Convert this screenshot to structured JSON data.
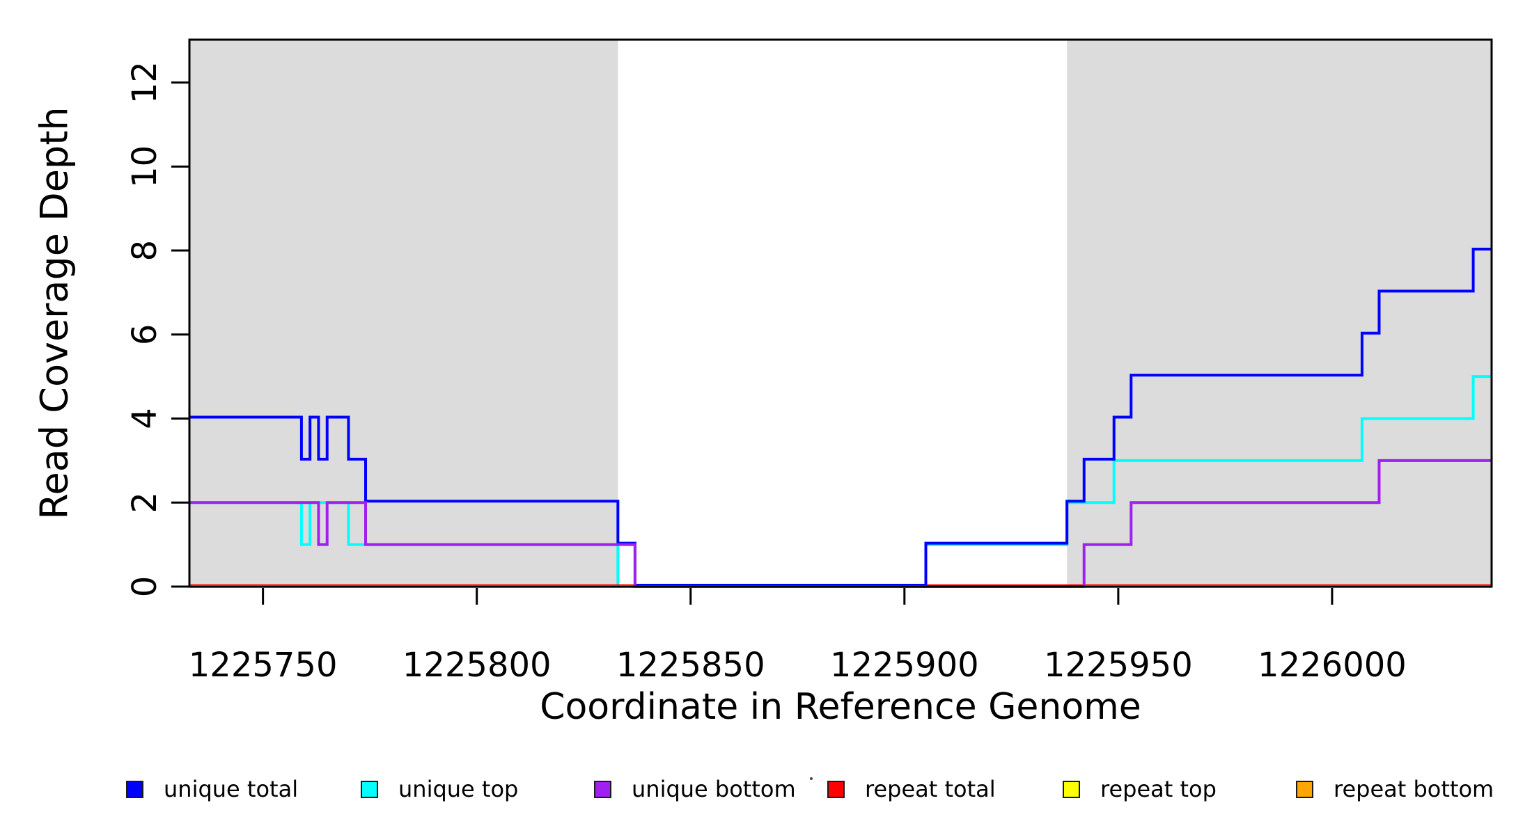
{
  "chart_data": {
    "type": "line",
    "subtype": "step",
    "title": "",
    "xlabel": "Coordinate in Reference Genome",
    "ylabel": "Read Coverage Depth",
    "xlim": [
      1225732.8,
      1226037.3
    ],
    "ylim": [
      0,
      13.02
    ],
    "grid": false,
    "x_ticks": [
      1225750,
      1225800,
      1225850,
      1225900,
      1225950,
      1226000
    ],
    "y_ticks": [
      0,
      2,
      4,
      6,
      8,
      10,
      12
    ],
    "shaded_regions": [
      {
        "name": "left-repeat-region",
        "x0": 1225732.8,
        "x1": 1225833,
        "color": "#dcdcdc"
      },
      {
        "name": "right-repeat-region",
        "x0": 1225938,
        "x1": 1226037.3,
        "color": "#dcdcdc"
      }
    ],
    "series": [
      {
        "name": "unique total",
        "color": "#0000ff",
        "steps": [
          [
            1225732.8,
            4
          ],
          [
            1225759,
            3
          ],
          [
            1225761,
            4
          ],
          [
            1225763,
            3
          ],
          [
            1225765,
            4
          ],
          [
            1225770,
            3
          ],
          [
            1225774,
            2
          ],
          [
            1225833,
            1
          ],
          [
            1225837,
            0
          ],
          [
            1225905,
            1
          ],
          [
            1225938,
            2
          ],
          [
            1225942,
            3
          ],
          [
            1225949,
            4
          ],
          [
            1225953,
            5
          ],
          [
            1226007,
            6
          ],
          [
            1226011,
            7
          ],
          [
            1226033,
            8
          ],
          [
            1226037.3,
            8
          ]
        ]
      },
      {
        "name": "unique top",
        "color": "#00ffff",
        "steps": [
          [
            1225732.8,
            2
          ],
          [
            1225759,
            1
          ],
          [
            1225761,
            2
          ],
          [
            1225770,
            1
          ],
          [
            1225833,
            0
          ],
          [
            1225905,
            1
          ],
          [
            1225938,
            2
          ],
          [
            1225949,
            3
          ],
          [
            1226007,
            4
          ],
          [
            1226033,
            5
          ],
          [
            1226037.3,
            5
          ]
        ]
      },
      {
        "name": "unique bottom",
        "color": "#a020f0",
        "steps": [
          [
            1225732.8,
            2
          ],
          [
            1225763,
            1
          ],
          [
            1225765,
            2
          ],
          [
            1225774,
            1
          ],
          [
            1225837,
            0
          ],
          [
            1225942,
            1
          ],
          [
            1225953,
            2
          ],
          [
            1226011,
            3
          ],
          [
            1226037.3,
            3
          ]
        ]
      },
      {
        "name": "repeat total",
        "color": "#ff0000",
        "steps": [
          [
            1225732.8,
            0
          ],
          [
            1226037.3,
            0
          ]
        ]
      },
      {
        "name": "repeat top",
        "color": "#ffff00",
        "steps": [
          [
            1225732.8,
            0
          ],
          [
            1226037.3,
            0
          ]
        ]
      },
      {
        "name": "repeat bottom",
        "color": "#ffa500",
        "steps": [
          [
            1225732.8,
            0
          ],
          [
            1226037.3,
            0
          ]
        ]
      }
    ],
    "legend": {
      "position": "bottom",
      "items": [
        {
          "label": "unique total",
          "color": "#0000ff"
        },
        {
          "label": "unique top",
          "color": "#00ffff"
        },
        {
          "label": "unique bottom",
          "color": "#a020f0"
        },
        {
          "label": "repeat total",
          "color": "#ff0000"
        },
        {
          "label": "repeat top",
          "color": "#ffff00"
        },
        {
          "label": "repeat bottom",
          "color": "#ffa500"
        }
      ]
    }
  }
}
